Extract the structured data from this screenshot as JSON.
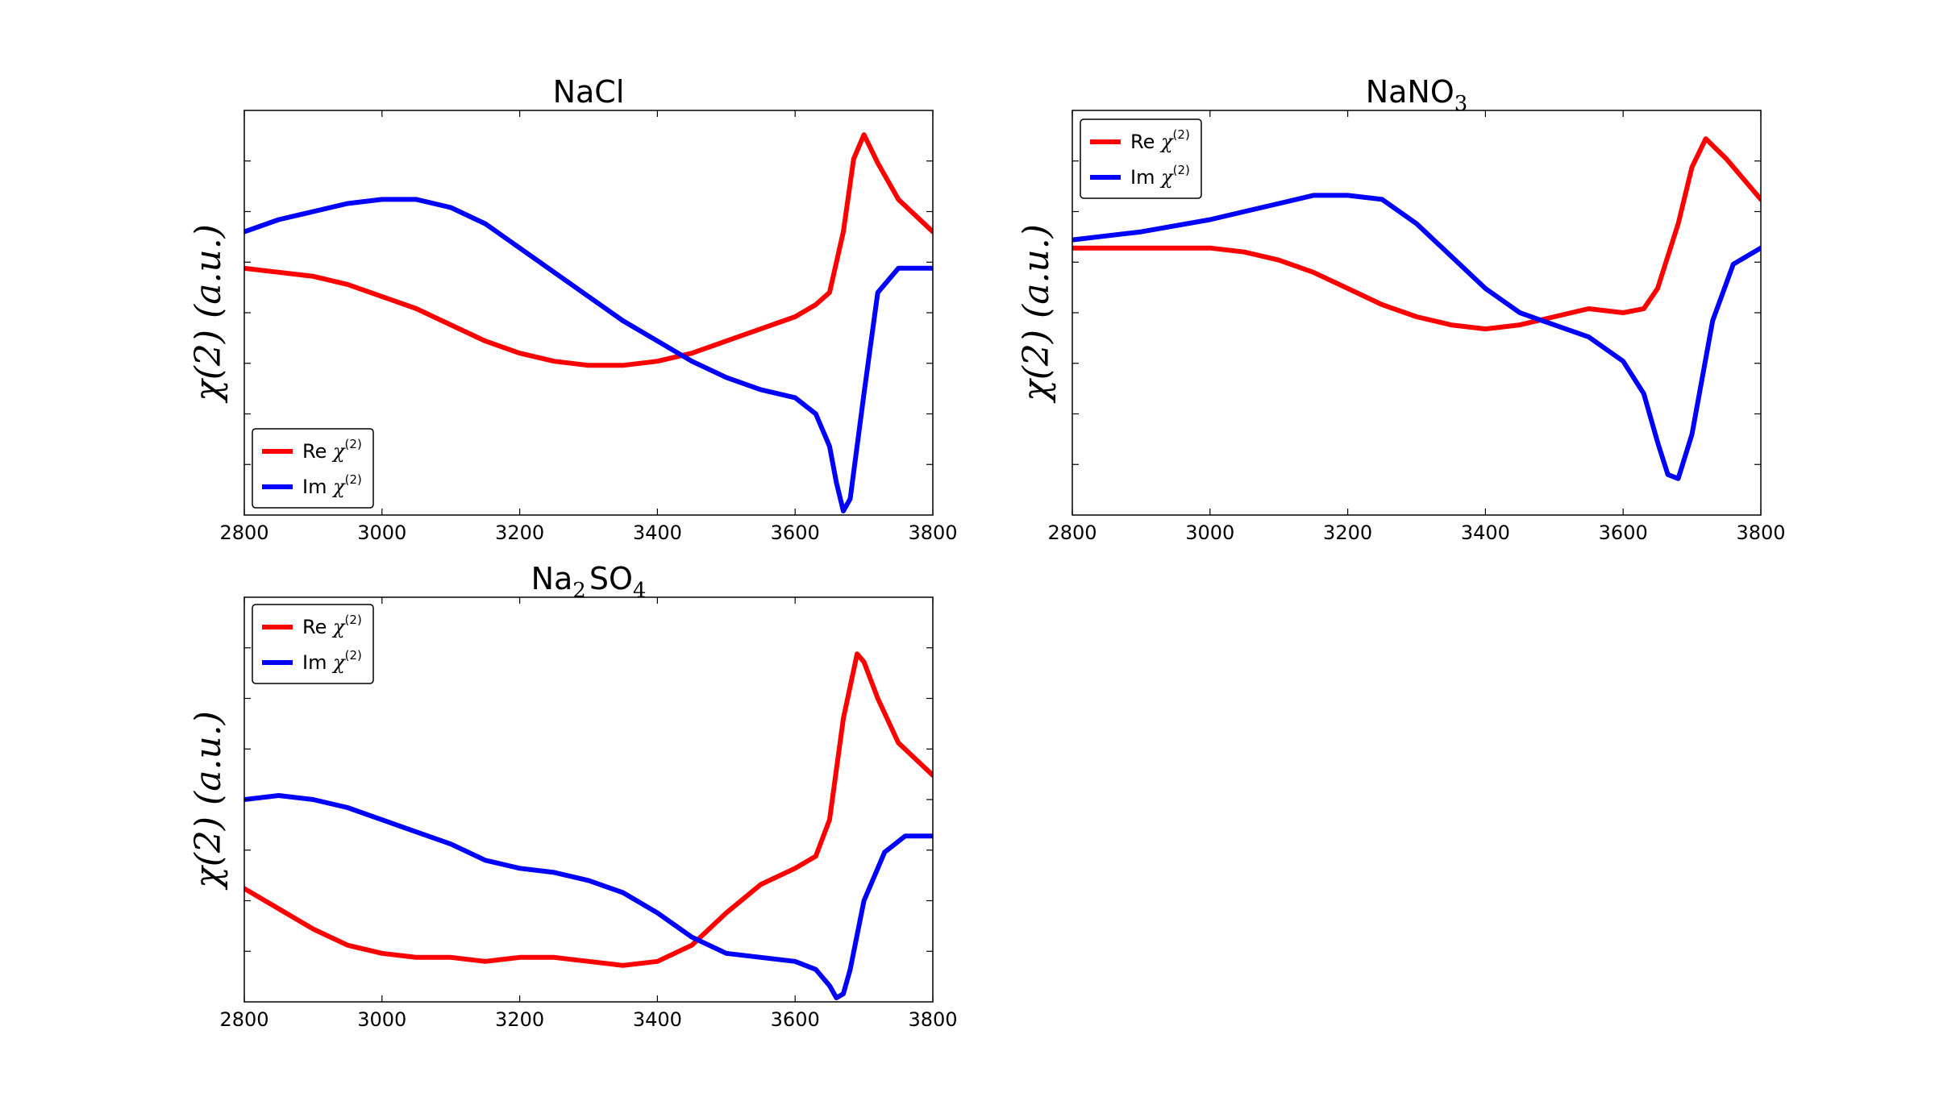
{
  "colors": {
    "re": "#ff0000",
    "im": "#0000ff",
    "axes": "#000000",
    "background": "#ffffff"
  },
  "chart_data": [
    {
      "type": "line",
      "title": "NaCl",
      "title_main": "NaCl",
      "title_sub": "",
      "title_after": "",
      "ylabel": "χ(2) (a.u.)",
      "xlim": [
        2800,
        3800
      ],
      "ylim": [
        0,
        1
      ],
      "xticks": [
        "2800",
        "3000",
        "3200",
        "3400",
        "3600",
        "3800"
      ],
      "yticks_labeled": false,
      "legend_location": "lower-left",
      "legend": [
        {
          "name": "Re χ(2)",
          "prefix": "Re",
          "color": "#ff0000"
        },
        {
          "name": "Im χ(2)",
          "prefix": "Im",
          "color": "#0000ff"
        }
      ],
      "series": [
        {
          "name": "Re χ(2)",
          "x": [
            2800,
            2850,
            2900,
            2950,
            3000,
            3050,
            3100,
            3150,
            3200,
            3250,
            3300,
            3350,
            3400,
            3450,
            3500,
            3550,
            3600,
            3630,
            3650,
            3670,
            3685,
            3700,
            3720,
            3750,
            3800
          ],
          "y": [
            0.61,
            0.6,
            0.59,
            0.57,
            0.54,
            0.51,
            0.47,
            0.43,
            0.4,
            0.38,
            0.37,
            0.37,
            0.38,
            0.4,
            0.43,
            0.46,
            0.49,
            0.52,
            0.55,
            0.7,
            0.88,
            0.94,
            0.87,
            0.78,
            0.7
          ]
        },
        {
          "name": "Im χ(2)",
          "x": [
            2800,
            2850,
            2900,
            2950,
            3000,
            3050,
            3100,
            3150,
            3200,
            3250,
            3300,
            3350,
            3400,
            3450,
            3500,
            3550,
            3600,
            3630,
            3650,
            3660,
            3670,
            3680,
            3700,
            3720,
            3750,
            3800
          ],
          "y": [
            0.7,
            0.73,
            0.75,
            0.77,
            0.78,
            0.78,
            0.76,
            0.72,
            0.66,
            0.6,
            0.54,
            0.48,
            0.43,
            0.38,
            0.34,
            0.31,
            0.29,
            0.25,
            0.17,
            0.08,
            0.01,
            0.04,
            0.3,
            0.55,
            0.61,
            0.61
          ]
        }
      ]
    },
    {
      "type": "line",
      "title": "NaNO3",
      "title_main": "NaNO",
      "title_sub": "3",
      "title_after": "",
      "ylabel": "χ(2) (a.u.)",
      "xlim": [
        2800,
        3800
      ],
      "ylim": [
        0,
        1
      ],
      "xticks": [
        "2800",
        "3000",
        "3200",
        "3400",
        "3600",
        "3800"
      ],
      "yticks_labeled": false,
      "legend_location": "upper-left",
      "legend": [
        {
          "name": "Re χ(2)",
          "prefix": "Re",
          "color": "#ff0000"
        },
        {
          "name": "Im χ(2)",
          "prefix": "Im",
          "color": "#0000ff"
        }
      ],
      "series": [
        {
          "name": "Re χ(2)",
          "x": [
            2800,
            2900,
            3000,
            3050,
            3100,
            3150,
            3200,
            3250,
            3300,
            3350,
            3400,
            3450,
            3500,
            3550,
            3600,
            3630,
            3650,
            3680,
            3700,
            3720,
            3750,
            3800
          ],
          "y": [
            0.66,
            0.66,
            0.66,
            0.65,
            0.63,
            0.6,
            0.56,
            0.52,
            0.49,
            0.47,
            0.46,
            0.47,
            0.49,
            0.51,
            0.5,
            0.51,
            0.56,
            0.72,
            0.86,
            0.93,
            0.88,
            0.78
          ]
        },
        {
          "name": "Im χ(2)",
          "x": [
            2800,
            2900,
            3000,
            3100,
            3150,
            3200,
            3250,
            3300,
            3350,
            3400,
            3450,
            3500,
            3550,
            3600,
            3630,
            3650,
            3665,
            3680,
            3700,
            3730,
            3760,
            3800
          ],
          "y": [
            0.68,
            0.7,
            0.73,
            0.77,
            0.79,
            0.79,
            0.78,
            0.72,
            0.64,
            0.56,
            0.5,
            0.47,
            0.44,
            0.38,
            0.3,
            0.18,
            0.1,
            0.09,
            0.2,
            0.48,
            0.62,
            0.66
          ]
        }
      ]
    },
    {
      "type": "line",
      "title": "Na2SO4",
      "title_main": "Na",
      "title_sub": "2",
      "title_after": "SO",
      "title_sub2": "4",
      "ylabel": "χ(2) (a.u.)",
      "xlim": [
        2800,
        3800
      ],
      "ylim": [
        0,
        1
      ],
      "xticks": [
        "2800",
        "3000",
        "3200",
        "3400",
        "3600",
        "3800"
      ],
      "yticks_labeled": false,
      "legend_location": "upper-left",
      "legend": [
        {
          "name": "Re χ(2)",
          "prefix": "Re",
          "color": "#ff0000"
        },
        {
          "name": "Im χ(2)",
          "prefix": "Im",
          "color": "#0000ff"
        }
      ],
      "series": [
        {
          "name": "Re χ(2)",
          "x": [
            2800,
            2850,
            2900,
            2950,
            3000,
            3050,
            3100,
            3150,
            3200,
            3250,
            3300,
            3350,
            3400,
            3450,
            3500,
            3550,
            3600,
            3630,
            3650,
            3670,
            3690,
            3700,
            3720,
            3750,
            3800
          ],
          "y": [
            0.28,
            0.23,
            0.18,
            0.14,
            0.12,
            0.11,
            0.11,
            0.1,
            0.11,
            0.11,
            0.1,
            0.09,
            0.1,
            0.14,
            0.22,
            0.29,
            0.33,
            0.36,
            0.45,
            0.7,
            0.86,
            0.84,
            0.75,
            0.64,
            0.56
          ]
        },
        {
          "name": "Im χ(2)",
          "x": [
            2800,
            2850,
            2900,
            2950,
            3000,
            3050,
            3100,
            3150,
            3200,
            3250,
            3300,
            3350,
            3400,
            3450,
            3500,
            3550,
            3600,
            3630,
            3650,
            3660,
            3670,
            3680,
            3700,
            3730,
            3760,
            3800
          ],
          "y": [
            0.5,
            0.51,
            0.5,
            0.48,
            0.45,
            0.42,
            0.39,
            0.35,
            0.33,
            0.32,
            0.3,
            0.27,
            0.22,
            0.16,
            0.12,
            0.11,
            0.1,
            0.08,
            0.04,
            0.01,
            0.02,
            0.08,
            0.25,
            0.37,
            0.41,
            0.41
          ]
        }
      ]
    }
  ]
}
